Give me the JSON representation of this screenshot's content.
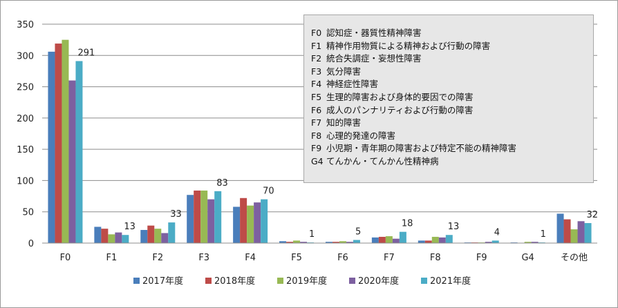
{
  "chart_data": {
    "type": "bar",
    "title": "",
    "xlabel": "",
    "ylabel": "",
    "ylim": [
      0,
      350
    ],
    "yticks": [
      0,
      50,
      100,
      150,
      200,
      250,
      300,
      350
    ],
    "grid": true,
    "legend_position": "bottom",
    "categories": [
      "F0",
      "F1",
      "F2",
      "F3",
      "F4",
      "F5",
      "F6",
      "F7",
      "F8",
      "F9",
      "G4",
      "その他"
    ],
    "series": [
      {
        "name": "2017年度",
        "color": "#4a7ebb",
        "values": [
          306,
          26,
          21,
          77,
          58,
          3,
          2,
          9,
          4,
          1,
          1,
          47
        ]
      },
      {
        "name": "2018年度",
        "color": "#be4b48",
        "values": [
          319,
          23,
          28,
          84,
          72,
          2,
          2,
          10,
          4,
          1,
          0,
          38
        ]
      },
      {
        "name": "2019年度",
        "color": "#98b954",
        "values": [
          325,
          14,
          23,
          84,
          60,
          4,
          3,
          11,
          10,
          1,
          2,
          22
        ]
      },
      {
        "name": "2020年度",
        "color": "#7d60a0",
        "values": [
          260,
          17,
          16,
          70,
          65,
          2,
          2,
          7,
          9,
          2,
          2,
          35
        ]
      },
      {
        "name": "2021年度",
        "color": "#4bacc6",
        "values": [
          291,
          13,
          33,
          83,
          70,
          1,
          5,
          18,
          13,
          4,
          1,
          32
        ]
      }
    ],
    "data_labels": {
      "series": "2021年度",
      "values": [
        "291",
        "13",
        "33",
        "83",
        "70",
        "1",
        "5",
        "18",
        "13",
        "4",
        "1",
        "32"
      ]
    },
    "annotation_box": {
      "rows": [
        {
          "code": "F0",
          "text": "認知症・器質性精神障害"
        },
        {
          "code": "F1",
          "text": "精神作用物質による精神および行動の障害"
        },
        {
          "code": "F2",
          "text": "統合失調症・妄想性障害"
        },
        {
          "code": "F3",
          "text": "気分障害"
        },
        {
          "code": "F4",
          "text": "神経症性障害"
        },
        {
          "code": "F5",
          "text": "生理的障害および身体的要因での障害"
        },
        {
          "code": "F6",
          "text": "成人のパンナリティおよび行動の障害"
        },
        {
          "code": "F7",
          "text": "知的障害"
        },
        {
          "code": "F8",
          "text": "心理的発達の障害"
        },
        {
          "code": "F9",
          "text": "小児期・青年期の障害および特定不能の精神障害"
        },
        {
          "code": "G4",
          "text": "てんかん・てんかん性精神病"
        }
      ]
    }
  }
}
